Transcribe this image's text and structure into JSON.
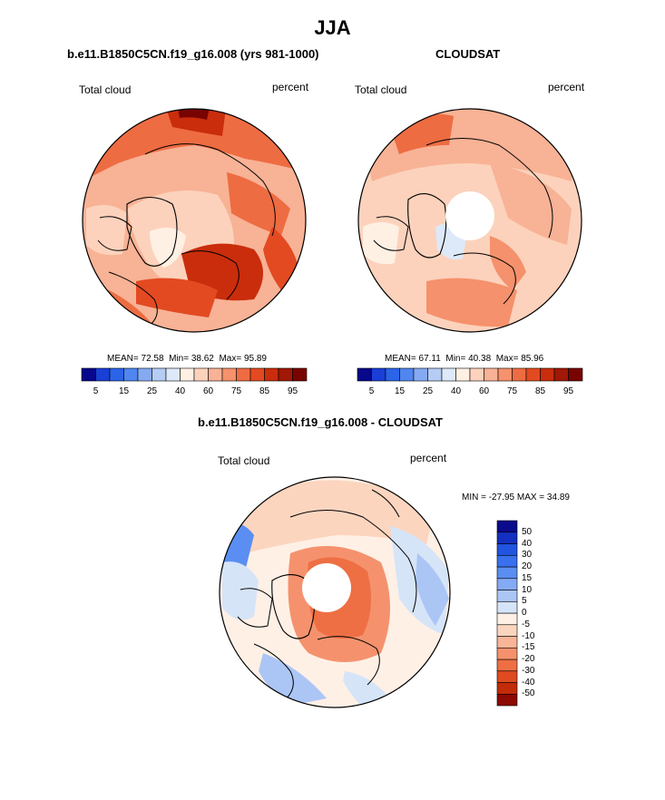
{
  "title": "JJA",
  "panels": [
    {
      "title": "b.e11.B1850C5CN.f19_g16.008 (yrs 981-1000)",
      "left_label": "Total cloud",
      "right_label": "percent",
      "stats": {
        "mean_label": "MEAN=",
        "mean": "72.58",
        "min_label": "Min=",
        "min": "38.62",
        "max_label": "Max=",
        "max": "95.89"
      },
      "colorbar": {
        "colors": [
          "#08088c",
          "#1a3fd6",
          "#2c64e8",
          "#4f86f0",
          "#86aaf2",
          "#b5cdf4",
          "#dde9f8",
          "#fff0e4",
          "#fcd2bc",
          "#f8b295",
          "#f5916c",
          "#ee6c42",
          "#e34a22",
          "#c92d0c",
          "#a01806",
          "#780402"
        ],
        "tick_labels": [
          "5",
          "15",
          "25",
          "40",
          "60",
          "75",
          "85",
          "95"
        ]
      }
    },
    {
      "title": "CLOUDSAT",
      "left_label": "Total cloud",
      "right_label": "percent",
      "stats": {
        "mean_label": "MEAN=",
        "mean": "67.11",
        "min_label": "Min=",
        "min": "40.38",
        "max_label": "Max=",
        "max": "85.96"
      },
      "colorbar": {
        "colors": [
          "#08088c",
          "#1a3fd6",
          "#2c64e8",
          "#4f86f0",
          "#86aaf2",
          "#b5cdf4",
          "#dde9f8",
          "#fff0e4",
          "#fcd2bc",
          "#f8b295",
          "#f5916c",
          "#ee6c42",
          "#e34a22",
          "#c92d0c",
          "#a01806",
          "#780402"
        ],
        "tick_labels": [
          "5",
          "15",
          "25",
          "40",
          "60",
          "75",
          "85",
          "95"
        ]
      }
    },
    {
      "title": "b.e11.B1850C5CN.f19_g16.008 - CLOUDSAT",
      "left_label": "Total cloud",
      "right_label": "percent",
      "minmax": "MIN = -27.95 MAX =  34.89",
      "colorbar": {
        "colors": [
          "#0a0a8c",
          "#1430c0",
          "#2154e0",
          "#3870ee",
          "#5a8ef2",
          "#84aaf4",
          "#abc6f5",
          "#d6e4f8",
          "#fff0e6",
          "#fcd5bf",
          "#f9b597",
          "#f5926d",
          "#ee6f44",
          "#e04a20",
          "#c22c08",
          "#8c0a02"
        ],
        "tick_labels": [
          "50",
          "40",
          "30",
          "20",
          "15",
          "10",
          "5",
          "0",
          "-5",
          "-10",
          "-15",
          "-20",
          "-30",
          "-40",
          "-50"
        ]
      }
    }
  ],
  "icons": {
    "map_discs": "polar-stereographic-map"
  }
}
